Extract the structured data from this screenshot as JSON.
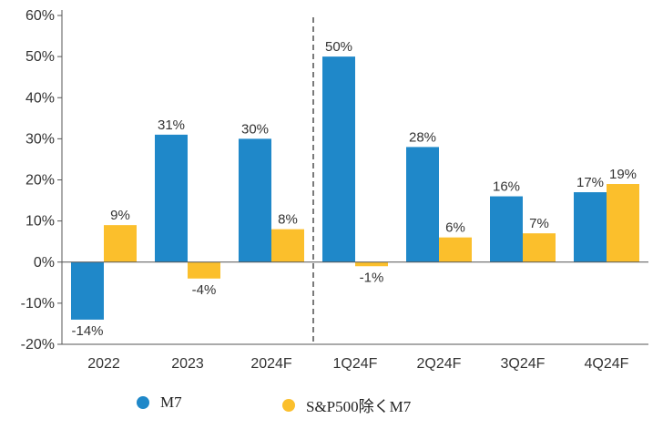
{
  "chart_data": {
    "type": "bar",
    "title": "",
    "xlabel": "",
    "ylabel": "",
    "ylim": [
      -20,
      60
    ],
    "yticks": [
      60,
      50,
      40,
      30,
      20,
      10,
      0,
      -10,
      -20
    ],
    "ytick_labels": [
      "60%",
      "50%",
      "40%",
      "30%",
      "20%",
      "10%",
      "0%",
      "-10%",
      "-20%"
    ],
    "categories": [
      "2022",
      "2023",
      "2024F",
      "1Q24F",
      "2Q24F",
      "3Q24F",
      "4Q24F"
    ],
    "divider_after_category": "2024F",
    "grid": false,
    "legend_position": "bottom",
    "series": [
      {
        "name": "M7",
        "color": "#1f88c9",
        "values": [
          -14,
          31,
          30,
          50,
          28,
          16,
          17
        ],
        "labels": [
          "-14%",
          "31%",
          "30%",
          "50%",
          "28%",
          "16%",
          "17%"
        ]
      },
      {
        "name": "S&P500除くM7",
        "color": "#fbbf2c",
        "values": [
          9,
          -4,
          8,
          -1,
          6,
          7,
          19
        ],
        "labels": [
          "9%",
          "-4%",
          "8%",
          "-1%",
          "6%",
          "7%",
          "19%"
        ]
      }
    ]
  }
}
